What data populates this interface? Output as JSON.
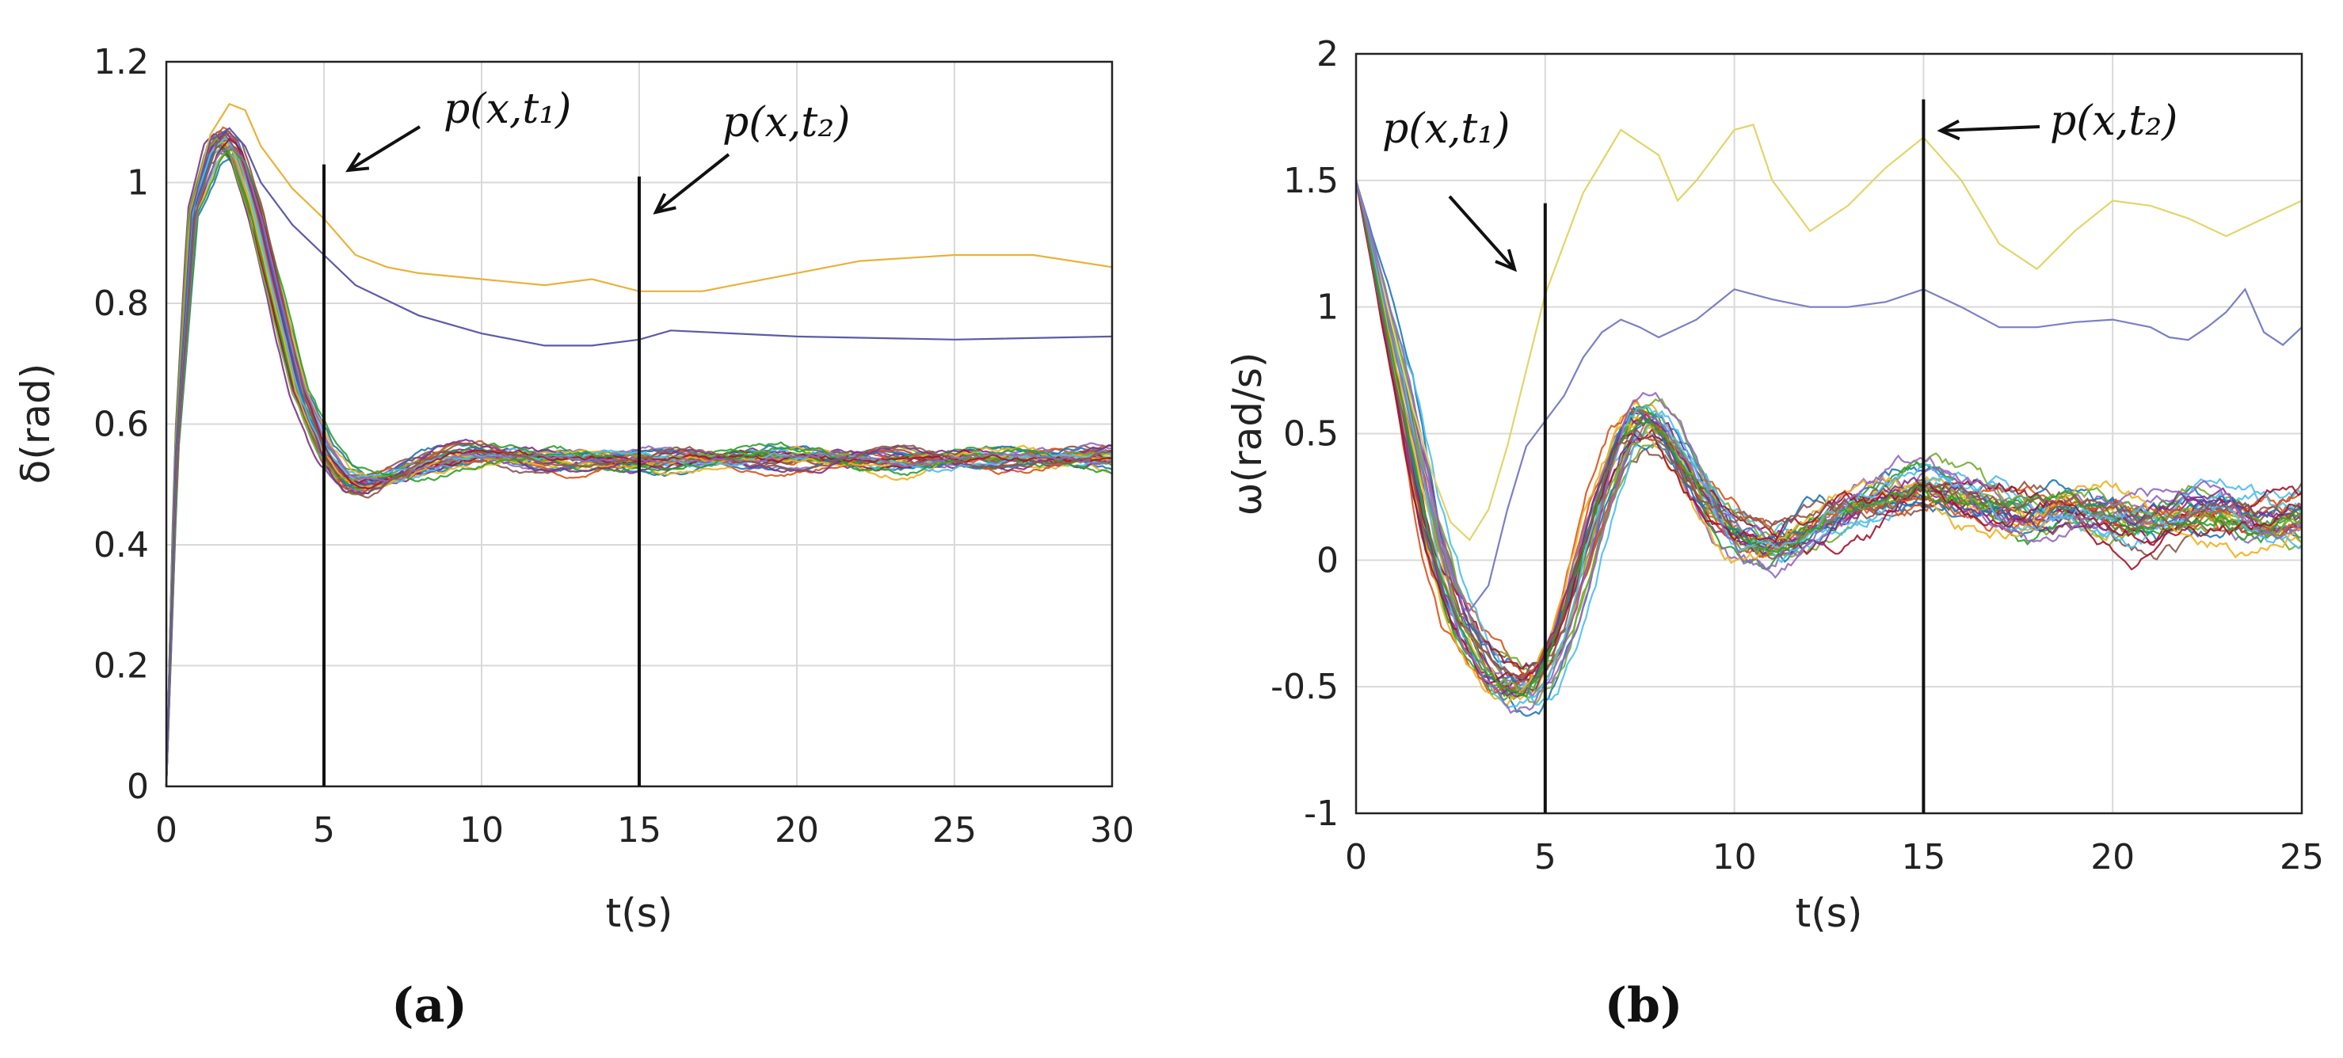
{
  "chart_data": [
    {
      "type": "line",
      "panel_label": "(a)",
      "ylabel": "δ(rad)",
      "xlabel": "t(s)",
      "xlim": [
        0,
        30
      ],
      "ylim": [
        0,
        1.2
      ],
      "xticks": [
        "0",
        "5",
        "10",
        "15",
        "20",
        "25",
        "30"
      ],
      "yticks": [
        "0",
        "0.2",
        "0.4",
        "0.6",
        "0.8",
        "1",
        "1.2"
      ],
      "grid": true,
      "markers": [
        {
          "x": 5,
          "ytop": 1.03,
          "label": "p(x,t₁)"
        },
        {
          "x": 15,
          "ytop": 1.01,
          "label": "p(x,t₂)"
        }
      ],
      "series": [
        {
          "name": "outlier-yellow",
          "color": "#e8b23a",
          "x": [
            0,
            0.3,
            0.8,
            1.4,
            2.0,
            2.5,
            3.0,
            4.0,
            5.0,
            6.0,
            7.0,
            8.0,
            10.0,
            12.0,
            13.5,
            15.0,
            17.0,
            18.0,
            20.0,
            22.0,
            25.0,
            27.5,
            30.0
          ],
          "y": [
            0.0,
            0.55,
            0.95,
            1.08,
            1.13,
            1.12,
            1.06,
            0.99,
            0.94,
            0.88,
            0.86,
            0.85,
            0.84,
            0.83,
            0.84,
            0.82,
            0.82,
            0.83,
            0.85,
            0.87,
            0.88,
            0.88,
            0.86
          ]
        },
        {
          "name": "outlier-blue",
          "color": "#5c5aa8",
          "x": [
            0,
            0.3,
            0.8,
            1.4,
            2.0,
            2.5,
            3.0,
            4.0,
            5.0,
            6.0,
            8.0,
            10.0,
            12.0,
            13.5,
            15.0,
            16.0,
            18.0,
            20.0,
            25.0,
            30.0
          ],
          "y": [
            0.0,
            0.55,
            0.95,
            1.07,
            1.09,
            1.06,
            1.0,
            0.93,
            0.88,
            0.83,
            0.78,
            0.75,
            0.73,
            0.73,
            0.74,
            0.755,
            0.75,
            0.745,
            0.74,
            0.745
          ]
        },
        {
          "name": "ensemble-mean",
          "color": "#3a5bbf",
          "x": [
            0,
            0.3,
            0.8,
            1.4,
            1.8,
            2.2,
            2.8,
            3.5,
            4.2,
            5.0,
            5.6,
            6.2,
            7.0,
            8.0,
            9.0,
            10.0,
            12.0,
            15.0,
            20.0,
            25.0,
            30.0
          ],
          "y": [
            0.0,
            0.55,
            0.95,
            1.05,
            1.07,
            1.05,
            0.95,
            0.8,
            0.65,
            0.55,
            0.51,
            0.5,
            0.51,
            0.53,
            0.545,
            0.55,
            0.54,
            0.54,
            0.545,
            0.54,
            0.545
          ]
        }
      ],
      "ensemble": {
        "count": 30,
        "colors": [
          "#1f77b4",
          "#d95319",
          "#edb120",
          "#7e2f8e",
          "#77ac30",
          "#4dbeee",
          "#a2142f",
          "#2ca02c",
          "#9467bd",
          "#8c564b"
        ],
        "spread": 0.02
      }
    },
    {
      "type": "line",
      "panel_label": "(b)",
      "ylabel": "ω(rad/s)",
      "xlabel": "t(s)",
      "xlim": [
        0,
        25
      ],
      "ylim": [
        -1,
        2
      ],
      "xticks": [
        "0",
        "5",
        "10",
        "15",
        "20",
        "25"
      ],
      "yticks": [
        "-1",
        "-0.5",
        "0",
        "0.5",
        "1",
        "1.5",
        "2"
      ],
      "grid": true,
      "markers": [
        {
          "x": 5,
          "ytop": 1.41,
          "label": "p(x,t₁)"
        },
        {
          "x": 15,
          "ytop": 1.82,
          "label": "p(x,t₂)"
        }
      ],
      "series": [
        {
          "name": "outlier-yellow",
          "color": "#e2d56a",
          "x": [
            0,
            0.5,
            1.0,
            1.5,
            2.0,
            2.5,
            3.0,
            3.5,
            4.0,
            5.0,
            6.0,
            7.0,
            8.0,
            8.5,
            9.0,
            10.0,
            10.5,
            11.0,
            12.0,
            13.0,
            14.0,
            15.0,
            16.0,
            17.0,
            18.0,
            19.0,
            20.0,
            21.0,
            22.0,
            23.0,
            24.0,
            25.0
          ],
          "y": [
            1.5,
            1.2,
            0.9,
            0.6,
            0.35,
            0.15,
            0.08,
            0.2,
            0.45,
            1.05,
            1.45,
            1.7,
            1.6,
            1.42,
            1.5,
            1.7,
            1.72,
            1.5,
            1.3,
            1.4,
            1.55,
            1.67,
            1.5,
            1.25,
            1.15,
            1.3,
            1.42,
            1.4,
            1.35,
            1.28,
            1.35,
            1.42
          ]
        },
        {
          "name": "outlier-blue",
          "color": "#7b7fc4",
          "x": [
            0,
            0.5,
            1.0,
            1.5,
            2.0,
            2.5,
            3.0,
            3.5,
            4.0,
            4.5,
            5.0,
            5.5,
            6.0,
            6.5,
            7.0,
            7.5,
            8.0,
            9.0,
            10.0,
            11.0,
            12.0,
            13.0,
            14.0,
            15.0,
            16.0,
            17.0,
            18.0,
            19.0,
            20.0,
            21.0,
            21.5,
            22.0,
            22.5,
            23.0,
            23.5,
            24.0,
            24.5,
            25.0
          ],
          "y": [
            1.5,
            1.2,
            0.85,
            0.5,
            0.2,
            -0.05,
            -0.2,
            -0.1,
            0.2,
            0.45,
            0.55,
            0.65,
            0.8,
            0.9,
            0.95,
            0.92,
            0.88,
            0.95,
            1.07,
            1.03,
            1.0,
            1.0,
            1.02,
            1.07,
            1.0,
            0.92,
            0.92,
            0.94,
            0.95,
            0.92,
            0.88,
            0.87,
            0.92,
            0.98,
            1.07,
            0.9,
            0.85,
            0.92
          ]
        },
        {
          "name": "ensemble-mean",
          "color": "#3a5bbf",
          "x": [
            0,
            0.5,
            1.0,
            1.5,
            2.0,
            2.5,
            3.0,
            3.5,
            4.0,
            4.5,
            5.0,
            5.5,
            6.0,
            6.5,
            7.0,
            7.5,
            8.0,
            8.5,
            9.0,
            9.5,
            10.0,
            11.0,
            12.0,
            13.0,
            14.0,
            15.0,
            16.0,
            17.0,
            18.0,
            19.0,
            20.0,
            21.0,
            22.0,
            23.0,
            24.0,
            25.0
          ],
          "y": [
            1.5,
            1.15,
            0.8,
            0.45,
            0.1,
            -0.15,
            -0.3,
            -0.42,
            -0.48,
            -0.5,
            -0.42,
            -0.25,
            0.0,
            0.25,
            0.45,
            0.55,
            0.52,
            0.42,
            0.3,
            0.18,
            0.1,
            0.05,
            0.12,
            0.2,
            0.25,
            0.3,
            0.25,
            0.2,
            0.18,
            0.2,
            0.17,
            0.15,
            0.18,
            0.2,
            0.15,
            0.18
          ]
        }
      ],
      "ensemble": {
        "count": 30,
        "colors": [
          "#1f77b4",
          "#d95319",
          "#edb120",
          "#7e2f8e",
          "#77ac30",
          "#4dbeee",
          "#a2142f",
          "#2ca02c",
          "#9467bd",
          "#8c564b"
        ],
        "spread": 0.12
      }
    }
  ]
}
